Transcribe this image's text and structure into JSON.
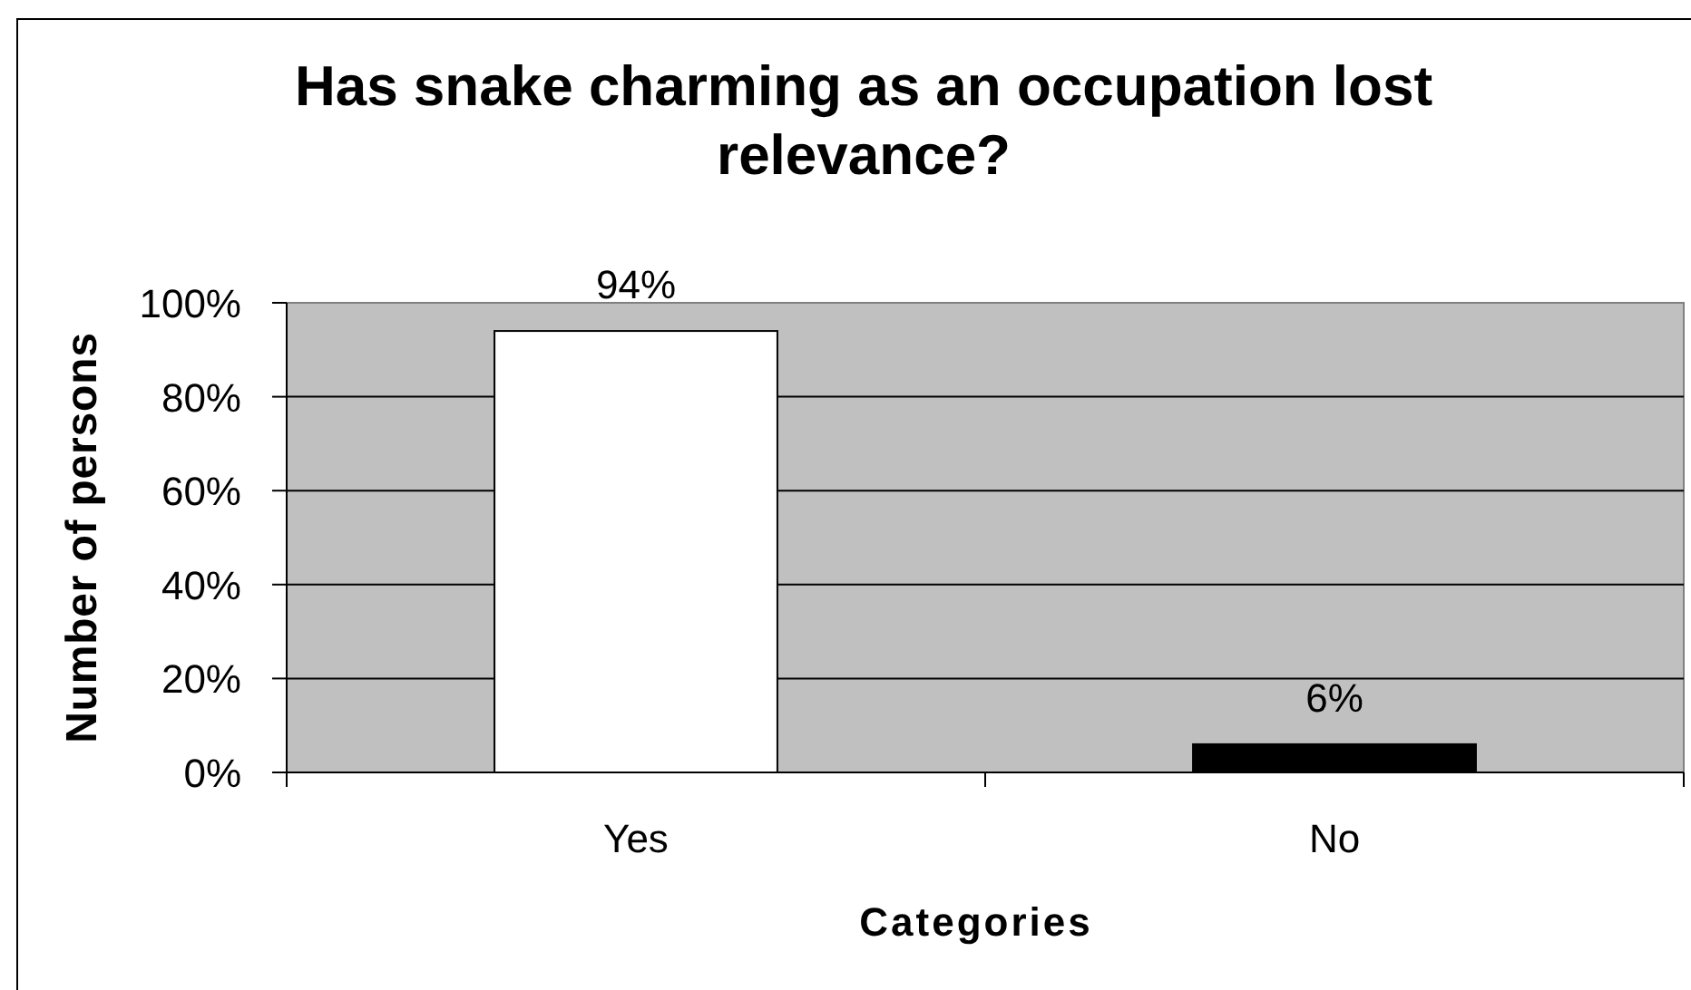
{
  "chart_data": {
    "type": "bar",
    "title": "Has snake charming as an occupation lost relevance?",
    "xlabel": "Categories",
    "ylabel": "Number of persons",
    "categories": [
      "Yes",
      "No"
    ],
    "values": [
      94,
      6
    ],
    "colors": [
      "#ffffff",
      "#000000"
    ],
    "value_labels": [
      "94%",
      "6%"
    ],
    "ylim": [
      0,
      100
    ],
    "yticks": [
      {
        "value": 0,
        "label": "0%"
      },
      {
        "value": 20,
        "label": "20%"
      },
      {
        "value": 40,
        "label": "40%"
      },
      {
        "value": 60,
        "label": "60%"
      },
      {
        "value": 80,
        "label": "80%"
      },
      {
        "value": 100,
        "label": "100%"
      }
    ],
    "grid": "y"
  }
}
